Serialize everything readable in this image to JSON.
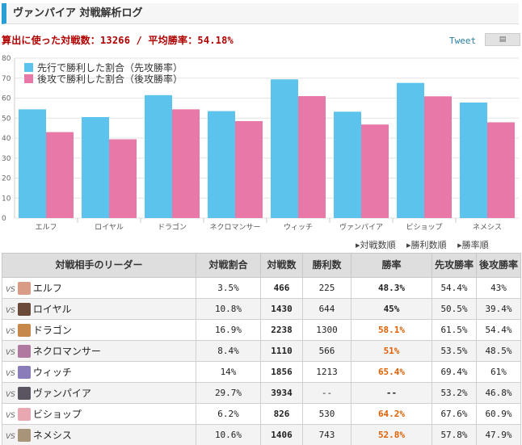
{
  "header": {
    "title": "ヴァンパイア 対戦解析ログ"
  },
  "summary": {
    "text": "算出に使った対戦数：13266 / 平均勝率：54.18%"
  },
  "share": {
    "tweet": "Tweet",
    "icon": "document-icon"
  },
  "colors": {
    "first": "#5bc3ec",
    "second": "#e878a8",
    "accent": "#2a9fd6",
    "highlight": "#e06000"
  },
  "chart_data": {
    "type": "bar",
    "categories": [
      "エルフ",
      "ロイヤル",
      "ドラゴン",
      "ネクロマンサー",
      "ウィッチ",
      "ヴァンパイア",
      "ビショップ",
      "ネメシス"
    ],
    "series": [
      {
        "name": "先行で勝利した割合（先攻勝率）",
        "values": [
          54.4,
          50.5,
          61.5,
          53.5,
          69.4,
          53.2,
          67.6,
          57.8
        ]
      },
      {
        "name": "後攻で勝利した割合（後攻勝率）",
        "values": [
          43,
          39.4,
          54.4,
          48.5,
          61,
          46.8,
          60.9,
          47.9
        ]
      }
    ],
    "ylim": [
      0,
      80
    ],
    "yticks": [
      0,
      10,
      20,
      30,
      40,
      50,
      60,
      70,
      80
    ],
    "grid": true,
    "legend": "top-left"
  },
  "sort": [
    "▸対戦数順",
    "▸勝利数順",
    "▸勝率順"
  ],
  "table": {
    "headers": [
      "対戦相手のリーダー",
      "対戦割合",
      "対戦数",
      "勝利数",
      "勝率",
      "先攻勝率",
      "後攻勝率"
    ],
    "vs_label": "VS",
    "rows": [
      {
        "leader": "エルフ",
        "ratio": "3.5%",
        "games": "466",
        "wins": "225",
        "rate": "48.3%",
        "first": "54.4%",
        "second": "43%",
        "hi": false,
        "avatar": "#d99a86"
      },
      {
        "leader": "ロイヤル",
        "ratio": "10.8%",
        "games": "1430",
        "wins": "644",
        "rate": "45%",
        "first": "50.5%",
        "second": "39.4%",
        "hi": false,
        "avatar": "#6b4a3a"
      },
      {
        "leader": "ドラゴン",
        "ratio": "16.9%",
        "games": "2238",
        "wins": "1300",
        "rate": "58.1%",
        "first": "61.5%",
        "second": "54.4%",
        "hi": true,
        "avatar": "#c7894a"
      },
      {
        "leader": "ネクロマンサー",
        "ratio": "8.4%",
        "games": "1110",
        "wins": "566",
        "rate": "51%",
        "first": "53.5%",
        "second": "48.5%",
        "hi": true,
        "avatar": "#b07aa0"
      },
      {
        "leader": "ウィッチ",
        "ratio": "14%",
        "games": "1856",
        "wins": "1213",
        "rate": "65.4%",
        "first": "69.4%",
        "second": "61%",
        "hi": true,
        "avatar": "#8a7cb8"
      },
      {
        "leader": "ヴァンパイア",
        "ratio": "29.7%",
        "games": "3934",
        "wins": "--",
        "rate": "--",
        "first": "53.2%",
        "second": "46.8%",
        "hi": false,
        "avatar": "#5a5560"
      },
      {
        "leader": "ビショップ",
        "ratio": "6.2%",
        "games": "826",
        "wins": "530",
        "rate": "64.2%",
        "first": "67.6%",
        "second": "60.9%",
        "hi": true,
        "avatar": "#e9a7b2"
      },
      {
        "leader": "ネメシス",
        "ratio": "10.6%",
        "games": "1406",
        "wins": "743",
        "rate": "52.8%",
        "first": "57.8%",
        "second": "47.9%",
        "hi": true,
        "avatar": "#a89478"
      }
    ]
  }
}
